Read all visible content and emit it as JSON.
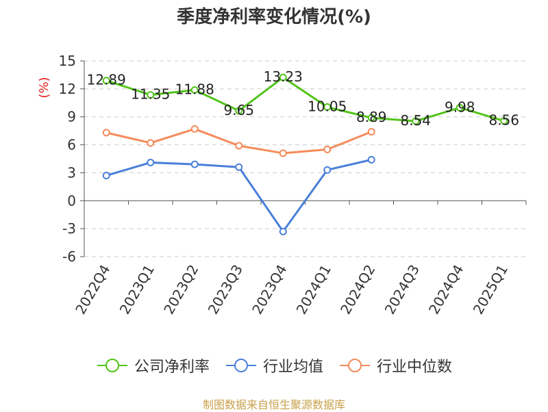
{
  "chart_data": {
    "type": "line",
    "title": "季度净利率变化情况(%)",
    "ylabel": "(%)",
    "categories": [
      "2022Q4",
      "2023Q1",
      "2023Q2",
      "2023Q3",
      "2023Q4",
      "2024Q1",
      "2024Q2",
      "2024Q3",
      "2024Q4",
      "2025Q1"
    ],
    "ylim": [
      -6,
      15
    ],
    "yticks": [
      15,
      12,
      9,
      6,
      3,
      0,
      -3,
      -6
    ],
    "grid": true,
    "legend_position": "bottom",
    "series": [
      {
        "name": "公司净利率",
        "color": "#52c41a",
        "labeled": true,
        "values": [
          12.89,
          11.35,
          11.88,
          9.65,
          13.23,
          10.05,
          8.89,
          8.54,
          9.98,
          8.56
        ],
        "labels": [
          "12.89",
          "11.35",
          "11.88",
          "9.65",
          "13.23",
          "10.05",
          "8.89",
          "8.54",
          "9.98",
          "8.56"
        ]
      },
      {
        "name": "行业均值",
        "color": "#4a7fd9",
        "labeled": false,
        "values": [
          2.7,
          4.1,
          3.9,
          3.6,
          -3.3,
          3.3,
          4.4,
          null,
          null,
          null
        ]
      },
      {
        "name": "行业中位数",
        "color": "#f58b5a",
        "labeled": false,
        "values": [
          7.3,
          6.2,
          7.7,
          5.9,
          5.1,
          5.5,
          7.4,
          null,
          null,
          null
        ]
      }
    ]
  },
  "footer": {
    "source": "制图数据来自恒生聚源数据库"
  }
}
